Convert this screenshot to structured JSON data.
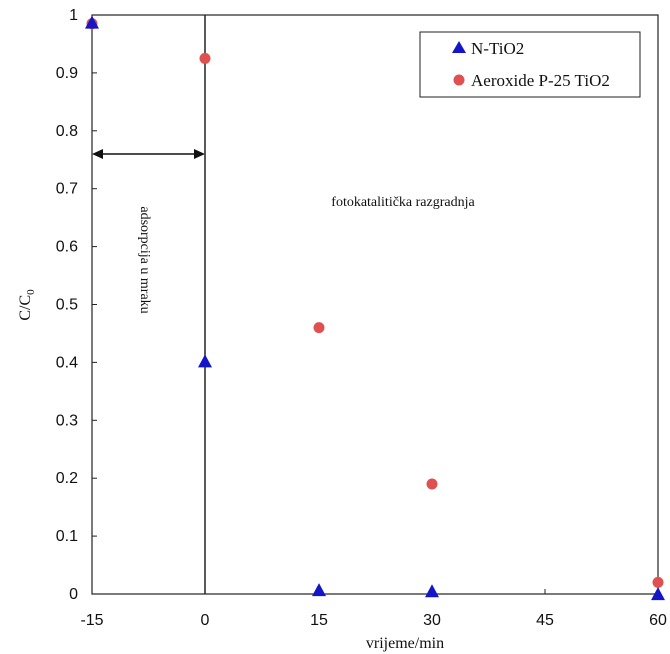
{
  "chart_data": {
    "type": "scatter",
    "xlabel": "vrijeme/min",
    "ylabel": "C/C0",
    "ylabel_main": "C/C",
    "ylabel_sub": "0",
    "x_ticks": [
      "-15",
      "0",
      "15",
      "30",
      "45",
      "60"
    ],
    "y_ticks": [
      "0",
      "0.1",
      "0.2",
      "0.3",
      "0.4",
      "0.5",
      "0.6",
      "0.7",
      "0.8",
      "0.9",
      "1"
    ],
    "ylim": [
      0,
      1
    ],
    "grid": false,
    "legend_position": "top-right",
    "series": [
      {
        "name": "N-TiO2",
        "marker": "triangle",
        "color": "#1515c8",
        "x": [
          -15,
          0,
          15,
          30,
          60
        ],
        "y": [
          0.985,
          0.4,
          0.005,
          0.003,
          -0.002
        ]
      },
      {
        "name": "Aeroxide P-25 TiO2",
        "marker": "circle",
        "color": "#e05050",
        "x": [
          -15,
          0,
          15,
          30,
          60
        ],
        "y": [
          0.985,
          0.925,
          0.46,
          0.19,
          0.02
        ]
      }
    ],
    "annotations": {
      "dark_adsorption": "adsorpcija u mraku",
      "photocatalysis": "fotokatalitička razgradnja"
    }
  }
}
